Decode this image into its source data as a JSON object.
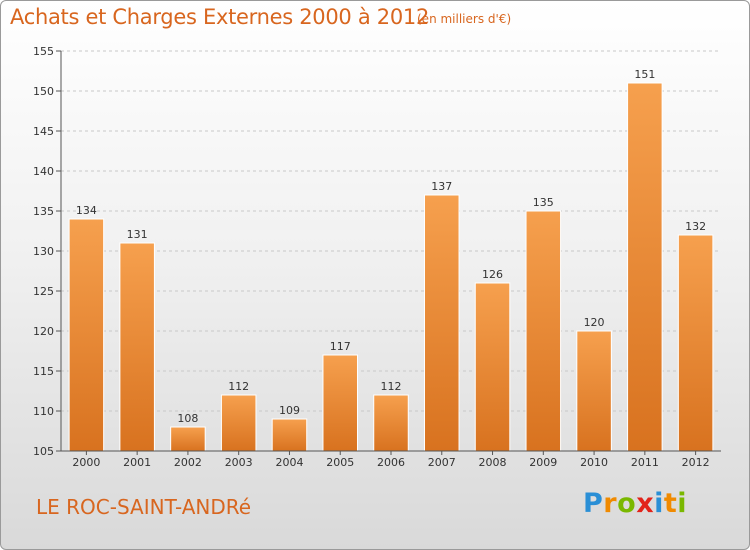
{
  "title": "Achats et Charges Externes 2000 à 2012",
  "subtitle": "(en milliers d'€)",
  "place": "LE ROC-SAINT-ANDRé",
  "logo": {
    "letters": [
      {
        "char": "P",
        "color": "#2a8fd6"
      },
      {
        "char": "r",
        "color": "#f08a00"
      },
      {
        "char": "o",
        "color": "#7ab800"
      },
      {
        "char": "x",
        "color": "#e2231a"
      },
      {
        "char": "i",
        "color": "#2a8fd6"
      },
      {
        "char": "t",
        "color": "#f08a00"
      },
      {
        "char": "i",
        "color": "#7ab800"
      }
    ]
  },
  "colors": {
    "accent": "#d8661f",
    "bar_top": "#f6a04e",
    "bar_bottom": "#d8721f"
  },
  "chart_data": {
    "type": "bar",
    "title": "Achats et Charges Externes 2000 à 2012",
    "subtitle": "(en milliers d'€)",
    "categories": [
      "2000",
      "2001",
      "2002",
      "2003",
      "2004",
      "2005",
      "2006",
      "2007",
      "2008",
      "2009",
      "2010",
      "2011",
      "2012"
    ],
    "values": [
      134,
      131,
      108,
      112,
      109,
      117,
      112,
      137,
      126,
      135,
      120,
      151,
      132
    ],
    "ylim": [
      105,
      155
    ],
    "yticks": [
      105,
      110,
      115,
      120,
      125,
      130,
      135,
      140,
      145,
      150,
      155
    ],
    "grid": "horizontal dashed",
    "xlabel": "",
    "ylabel": ""
  }
}
